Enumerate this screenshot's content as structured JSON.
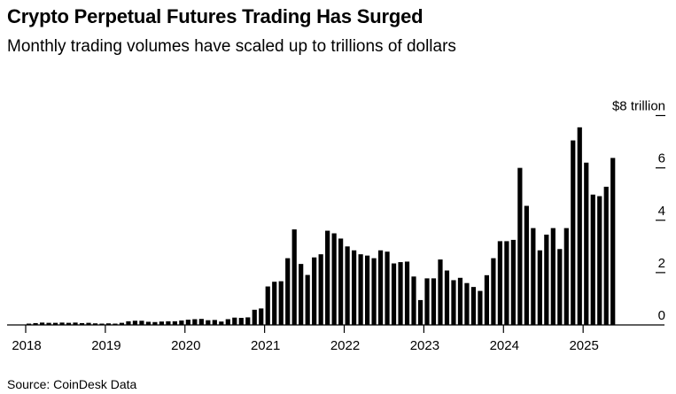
{
  "title": "Crypto Perpetual Futures Trading Has Surged",
  "subtitle": "Monthly trading volumes have scaled up to trillions of dollars",
  "source": "Source: CoinDesk Data",
  "chart_data": {
    "type": "bar",
    "title": "Crypto Perpetual Futures Trading Has Surged",
    "subtitle": "Monthly trading volumes have scaled up to trillions of dollars",
    "xlabel": "",
    "ylabel": "",
    "unit": "$ trillion",
    "ylim": [
      0,
      8
    ],
    "y_ticks": [
      {
        "value": 0,
        "label": "0"
      },
      {
        "value": 2,
        "label": "2"
      },
      {
        "value": 4,
        "label": "4"
      },
      {
        "value": 6,
        "label": "6"
      },
      {
        "value": 8,
        "label": "$8 trillion"
      }
    ],
    "x_ticks": [
      "2018",
      "2019",
      "2020",
      "2021",
      "2022",
      "2023",
      "2024",
      "2025"
    ],
    "start": "2018-01",
    "bar_color": "#000000",
    "values": [
      0.05,
      0.07,
      0.09,
      0.08,
      0.08,
      0.09,
      0.08,
      0.09,
      0.07,
      0.08,
      0.06,
      0.05,
      0.06,
      0.05,
      0.08,
      0.14,
      0.16,
      0.16,
      0.12,
      0.11,
      0.13,
      0.14,
      0.14,
      0.17,
      0.2,
      0.22,
      0.23,
      0.18,
      0.19,
      0.13,
      0.22,
      0.28,
      0.27,
      0.29,
      0.58,
      0.63,
      1.47,
      1.65,
      1.67,
      2.55,
      3.65,
      2.33,
      1.91,
      2.58,
      2.7,
      3.6,
      3.5,
      3.3,
      3.0,
      2.85,
      2.7,
      2.65,
      2.55,
      2.85,
      2.8,
      2.35,
      2.4,
      2.42,
      1.85,
      0.95,
      1.78,
      1.78,
      2.5,
      2.08,
      1.71,
      1.8,
      1.6,
      1.45,
      1.3,
      1.9,
      2.55,
      3.2,
      3.2,
      3.25,
      6.0,
      4.55,
      3.7,
      2.85,
      3.45,
      3.7,
      2.9,
      3.7,
      7.05,
      7.55,
      6.2,
      4.98,
      4.92,
      5.28,
      6.38
    ]
  }
}
